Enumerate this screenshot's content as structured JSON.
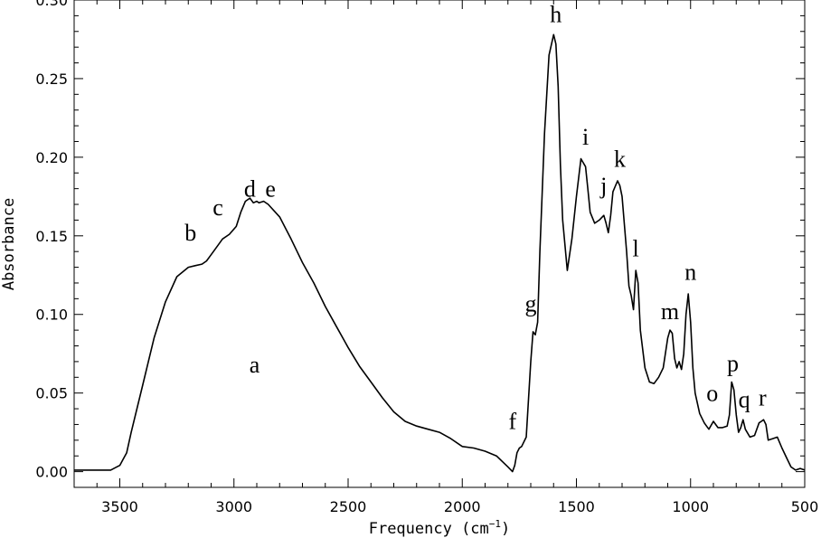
{
  "chart_data": {
    "type": "line",
    "title": "",
    "xlabel": "Frequency (cm",
    "xlabel_sup": "−1",
    "xlabel_close": ")",
    "ylabel": "Absorbance",
    "xlim": [
      3700,
      500
    ],
    "ylim": [
      -0.01,
      0.3
    ],
    "x_reversed": true,
    "x_ticks": [
      3500,
      3000,
      2500,
      2000,
      1500,
      1000,
      500
    ],
    "x_tick_labels": [
      "3500",
      "3000",
      "2500",
      "2000",
      "1500",
      "1000",
      "500"
    ],
    "y_ticks": [
      0.0,
      0.05,
      0.1,
      0.15,
      0.2,
      0.25,
      0.3
    ],
    "y_tick_labels": [
      "0.00",
      "0.05",
      "0.10",
      "0.15",
      "0.20",
      "0.25",
      "0.30"
    ],
    "grid": false,
    "legend": "none",
    "series": [
      {
        "color": "#000000",
        "x": [
          3700,
          3600,
          3540,
          3500,
          3470,
          3450,
          3400,
          3350,
          3300,
          3250,
          3200,
          3170,
          3140,
          3120,
          3100,
          3080,
          3050,
          3020,
          2990,
          2970,
          2950,
          2930,
          2915,
          2900,
          2890,
          2870,
          2850,
          2800,
          2750,
          2700,
          2650,
          2600,
          2550,
          2500,
          2450,
          2400,
          2350,
          2300,
          2250,
          2200,
          2150,
          2100,
          2050,
          2000,
          1950,
          1900,
          1850,
          1800,
          1780,
          1770,
          1760,
          1750,
          1740,
          1720,
          1700,
          1690,
          1680,
          1670,
          1660,
          1640,
          1620,
          1600,
          1590,
          1580,
          1570,
          1560,
          1540,
          1520,
          1500,
          1480,
          1460,
          1450,
          1440,
          1420,
          1400,
          1380,
          1370,
          1360,
          1350,
          1340,
          1320,
          1310,
          1300,
          1280,
          1270,
          1260,
          1250,
          1240,
          1230,
          1220,
          1200,
          1180,
          1160,
          1140,
          1120,
          1100,
          1090,
          1080,
          1070,
          1060,
          1050,
          1040,
          1030,
          1020,
          1010,
          1000,
          990,
          980,
          960,
          940,
          930,
          920,
          900,
          880,
          860,
          840,
          830,
          820,
          810,
          800,
          790,
          780,
          770,
          760,
          740,
          720,
          700,
          690,
          680,
          670,
          660,
          640,
          620,
          600,
          580,
          560,
          540,
          520,
          500
        ],
        "values": [
          0.001,
          0.001,
          0.001,
          0.004,
          0.012,
          0.025,
          0.055,
          0.085,
          0.108,
          0.124,
          0.13,
          0.131,
          0.132,
          0.134,
          0.138,
          0.142,
          0.148,
          0.151,
          0.156,
          0.165,
          0.172,
          0.174,
          0.171,
          0.172,
          0.171,
          0.172,
          0.17,
          0.162,
          0.148,
          0.133,
          0.12,
          0.105,
          0.092,
          0.079,
          0.067,
          0.057,
          0.047,
          0.038,
          0.032,
          0.029,
          0.027,
          0.025,
          0.021,
          0.016,
          0.015,
          0.013,
          0.01,
          0.003,
          0.0,
          0.004,
          0.012,
          0.015,
          0.016,
          0.022,
          0.07,
          0.089,
          0.087,
          0.095,
          0.14,
          0.215,
          0.265,
          0.278,
          0.272,
          0.245,
          0.195,
          0.16,
          0.128,
          0.148,
          0.175,
          0.199,
          0.194,
          0.18,
          0.165,
          0.158,
          0.16,
          0.163,
          0.158,
          0.152,
          0.163,
          0.178,
          0.185,
          0.182,
          0.175,
          0.14,
          0.118,
          0.112,
          0.103,
          0.128,
          0.12,
          0.09,
          0.066,
          0.057,
          0.056,
          0.06,
          0.066,
          0.085,
          0.09,
          0.088,
          0.072,
          0.066,
          0.07,
          0.065,
          0.075,
          0.1,
          0.113,
          0.095,
          0.066,
          0.05,
          0.037,
          0.031,
          0.029,
          0.027,
          0.032,
          0.028,
          0.028,
          0.029,
          0.036,
          0.057,
          0.052,
          0.036,
          0.025,
          0.028,
          0.033,
          0.027,
          0.022,
          0.023,
          0.031,
          0.032,
          0.033,
          0.03,
          0.02,
          0.021,
          0.022,
          0.015,
          0.009,
          0.003,
          0.001,
          0.002,
          0.001
        ]
      }
    ],
    "annotations": [
      {
        "text": "a",
        "x": 2910,
        "y": 0.063
      },
      {
        "text": "b",
        "x": 3190,
        "y": 0.147
      },
      {
        "text": "c",
        "x": 3070,
        "y": 0.163
      },
      {
        "text": "d",
        "x": 2930,
        "y": 0.175
      },
      {
        "text": "e",
        "x": 2840,
        "y": 0.175
      },
      {
        "text": "f",
        "x": 1780,
        "y": 0.027
      },
      {
        "text": "g",
        "x": 1700,
        "y": 0.102
      },
      {
        "text": "h",
        "x": 1590,
        "y": 0.286
      },
      {
        "text": "i",
        "x": 1460,
        "y": 0.208
      },
      {
        "text": "j",
        "x": 1380,
        "y": 0.177
      },
      {
        "text": "k",
        "x": 1310,
        "y": 0.194
      },
      {
        "text": "l",
        "x": 1240,
        "y": 0.137
      },
      {
        "text": "m",
        "x": 1090,
        "y": 0.097
      },
      {
        "text": "n",
        "x": 1000,
        "y": 0.122
      },
      {
        "text": "o",
        "x": 905,
        "y": 0.045
      },
      {
        "text": "p",
        "x": 815,
        "y": 0.064
      },
      {
        "text": "q",
        "x": 765,
        "y": 0.041
      },
      {
        "text": "r",
        "x": 685,
        "y": 0.042
      }
    ]
  }
}
